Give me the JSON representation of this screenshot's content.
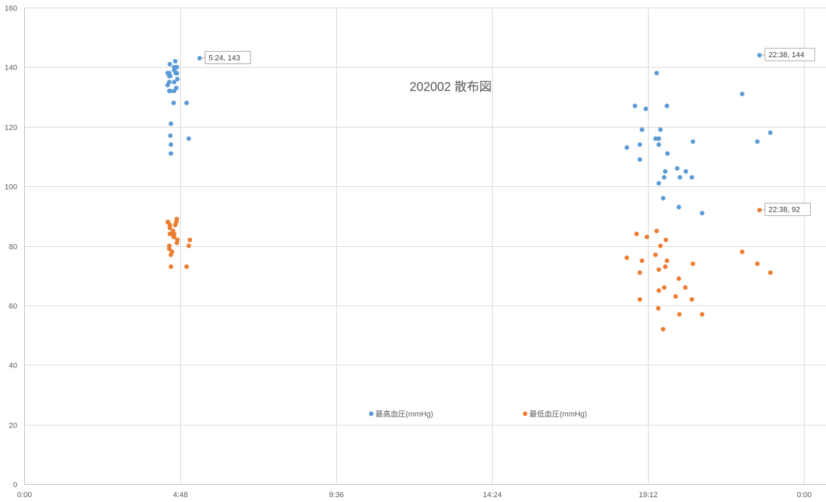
{
  "chart_data": {
    "type": "scatter",
    "title": "202002 散布図",
    "xlabel": "",
    "ylabel": "",
    "x_unit": "time-of-day",
    "xlim": [
      "0:00",
      "24:00"
    ],
    "ylim": [
      0,
      160
    ],
    "x_tick_labels": [
      "0:00",
      "4:48",
      "9:36",
      "14:24",
      "19:12",
      "0:00"
    ],
    "y_ticks": [
      0,
      20,
      40,
      60,
      80,
      100,
      120,
      140,
      160
    ],
    "grid": true,
    "legend_position": "bottom",
    "colors": {
      "high": "#5B9BD5",
      "low": "#ED7D31",
      "grid": "#D9D9D9",
      "axis": "#BFBFBF"
    },
    "series": [
      {
        "name": "最高血圧(mmHg)",
        "points": [
          [
            "4:25",
            138
          ],
          [
            "4:26",
            138
          ],
          [
            "4:25",
            134
          ],
          [
            "4:28",
            138
          ],
          [
            "4:28",
            137
          ],
          [
            "4:28",
            135
          ],
          [
            "4:28",
            132
          ],
          [
            "4:29",
            141
          ],
          [
            "4:30",
            137
          ],
          [
            "4:30",
            132
          ],
          [
            "4:31",
            121
          ],
          [
            "4:30",
            117
          ],
          [
            "4:31",
            114
          ],
          [
            "4:31",
            111
          ],
          [
            "4:36",
            128
          ],
          [
            "4:37",
            140
          ],
          [
            "4:37",
            139
          ],
          [
            "4:37",
            135
          ],
          [
            "4:37",
            132
          ],
          [
            "4:39",
            142
          ],
          [
            "4:40",
            138
          ],
          [
            "4:41",
            138
          ],
          [
            "4:41",
            133
          ],
          [
            "4:42",
            140
          ],
          [
            "4:42",
            138
          ],
          [
            "4:43",
            136
          ],
          [
            "5:00",
            128
          ],
          [
            "5:04",
            116
          ],
          [
            "5:24",
            143
          ],
          [
            "18:33",
            113
          ],
          [
            "18:48",
            127
          ],
          [
            "18:57",
            114
          ],
          [
            "18:57",
            109
          ],
          [
            "19:01",
            119
          ],
          [
            "19:08",
            126
          ],
          [
            "19:26",
            116
          ],
          [
            "19:28",
            138
          ],
          [
            "19:32",
            101
          ],
          [
            "19:32",
            116
          ],
          [
            "19:32",
            114
          ],
          [
            "19:35",
            119
          ],
          [
            "19:40",
            96
          ],
          [
            "19:42",
            103
          ],
          [
            "19:44",
            105
          ],
          [
            "19:47",
            127
          ],
          [
            "19:48",
            111
          ],
          [
            "20:06",
            106
          ],
          [
            "20:09",
            93
          ],
          [
            "20:11",
            103
          ],
          [
            "20:22",
            105
          ],
          [
            "20:33",
            103
          ],
          [
            "20:35",
            115
          ],
          [
            "20:52",
            91
          ],
          [
            "22:06",
            131
          ],
          [
            "22:34",
            115
          ],
          [
            "22:38",
            144
          ],
          [
            "22:58",
            118
          ]
        ]
      },
      {
        "name": "最低血圧(mmHg)",
        "points": [
          [
            "4:25",
            88
          ],
          [
            "4:26",
            88
          ],
          [
            "4:28",
            80
          ],
          [
            "4:28",
            79
          ],
          [
            "4:29",
            87
          ],
          [
            "4:29",
            86
          ],
          [
            "4:29",
            84
          ],
          [
            "4:30",
            84
          ],
          [
            "4:31",
            77
          ],
          [
            "4:31",
            73
          ],
          [
            "4:33",
            78
          ],
          [
            "4:35",
            85
          ],
          [
            "4:36",
            83
          ],
          [
            "4:37",
            84
          ],
          [
            "4:37",
            83
          ],
          [
            "4:39",
            87
          ],
          [
            "4:41",
            88
          ],
          [
            "4:42",
            89
          ],
          [
            "4:42",
            81
          ],
          [
            "4:43",
            82
          ],
          [
            "5:00",
            73
          ],
          [
            "5:04",
            80
          ],
          [
            "5:06",
            82
          ],
          [
            "18:33",
            76
          ],
          [
            "18:51",
            84
          ],
          [
            "18:57",
            71
          ],
          [
            "18:57",
            62
          ],
          [
            "19:01",
            75
          ],
          [
            "19:10",
            83
          ],
          [
            "19:26",
            77
          ],
          [
            "19:28",
            85
          ],
          [
            "19:31",
            59
          ],
          [
            "19:32",
            72
          ],
          [
            "19:32",
            65
          ],
          [
            "19:35",
            80
          ],
          [
            "19:40",
            52
          ],
          [
            "19:42",
            66
          ],
          [
            "19:44",
            73
          ],
          [
            "19:45",
            82
          ],
          [
            "19:47",
            75
          ],
          [
            "20:03",
            63
          ],
          [
            "20:09",
            69
          ],
          [
            "20:10",
            57
          ],
          [
            "20:21",
            66
          ],
          [
            "20:33",
            62
          ],
          [
            "20:35",
            74
          ],
          [
            "20:52",
            57
          ],
          [
            "22:06",
            78
          ],
          [
            "22:34",
            74
          ],
          [
            "22:38",
            92
          ],
          [
            "22:58",
            71
          ]
        ]
      }
    ],
    "annotations": [
      {
        "series": 0,
        "x": "5:24",
        "y": 143,
        "label": "5:24, 143"
      },
      {
        "series": 0,
        "x": "22:38",
        "y": 144,
        "label": "22:38, 144"
      },
      {
        "series": 1,
        "x": "22:38",
        "y": 92,
        "label": "22:38, 92"
      }
    ]
  }
}
